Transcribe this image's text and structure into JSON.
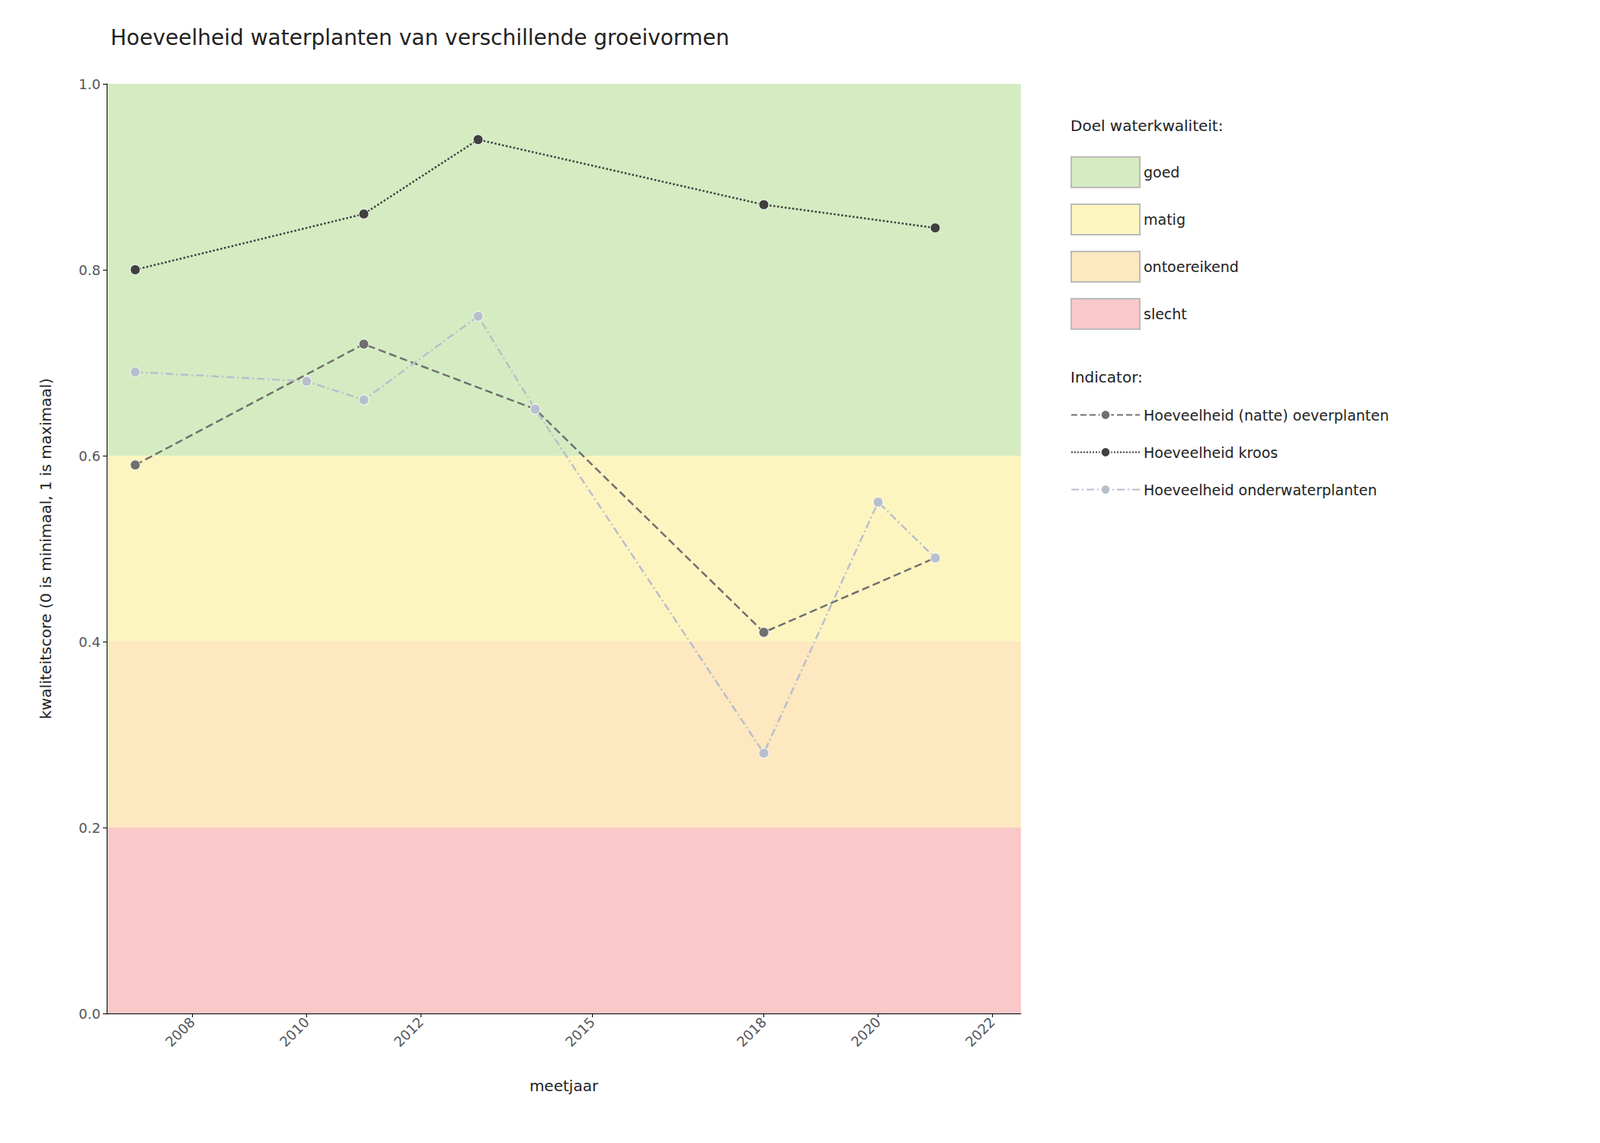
{
  "chart_data": {
    "type": "line",
    "title": "Hoeveelheid waterplanten van verschillende groeivormen",
    "x_label": "meetjaar",
    "y_label": "kwaliteitscore (0 is minimaal, 1 is maximaal)",
    "xlim": [
      2006.5,
      2022.5
    ],
    "xticks": [
      2008,
      2010,
      2012,
      2015,
      2018,
      2020,
      2022
    ],
    "ylim": [
      0.0,
      1.0
    ],
    "yticks": [
      {
        "value": 0.0,
        "label": "0.0"
      },
      0.2,
      0.4,
      0.6,
      0.8,
      {
        "value": 1.0,
        "label": "1.0"
      }
    ],
    "grid": true,
    "legend": "right",
    "bands_title": "Doel waterkwaliteit:",
    "bands": [
      {
        "name": "goed",
        "from": 0.6,
        "to": 1.0,
        "color": "#d5ecc2"
      },
      {
        "name": "matig",
        "from": 0.4,
        "to": 0.6,
        "color": "#fdf5c0"
      },
      {
        "name": "ontoereikend",
        "from": 0.2,
        "to": 0.4,
        "color": "#fde8c0"
      },
      {
        "name": "slecht",
        "from": 0.0,
        "to": 0.2,
        "color": "#fac8c8"
      }
    ],
    "series_title": "Indicator:",
    "series": [
      {
        "name": "Hoeveelheid (natte) oeverplanten",
        "color": "#707070",
        "line_style": "dashed",
        "marker": "circle",
        "x": [
          2007,
          2011,
          2014,
          2018,
          2021
        ],
        "values": [
          0.59,
          0.72,
          0.65,
          0.41,
          0.49
        ]
      },
      {
        "name": "Hoeveelheid kroos",
        "color": "#404040",
        "line_style": "dotted",
        "marker": "circle",
        "x": [
          2007,
          2011,
          2013,
          2018,
          2021
        ],
        "values": [
          0.8,
          0.86,
          0.94,
          0.87,
          0.845
        ]
      },
      {
        "name": "Hoeveelheid onderwaterplanten",
        "color": "#b8bfcc",
        "line_style": "dashdot",
        "marker": "circle",
        "x": [
          2007,
          2010,
          2011,
          2013,
          2014,
          2018,
          2020,
          2021
        ],
        "values": [
          0.69,
          0.68,
          0.66,
          0.75,
          0.65,
          0.28,
          0.55,
          0.49
        ]
      }
    ]
  }
}
